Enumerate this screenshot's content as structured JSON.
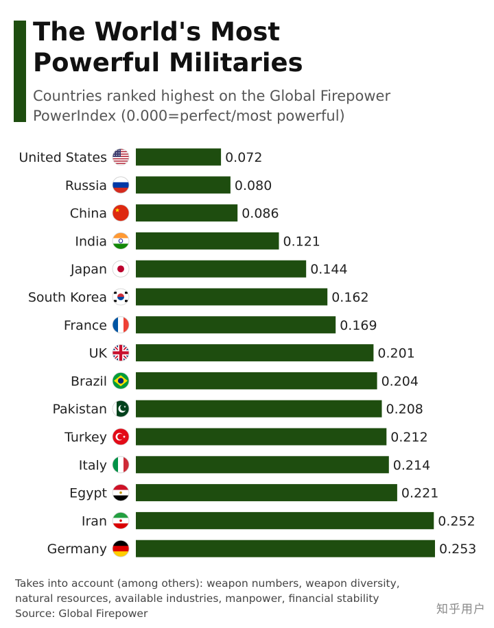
{
  "header": {
    "title": "The World's Most\nPowerful Militaries",
    "subtitle": "Countries ranked highest on the Global Firepower\nPowerIndex (0.000=perfect/most powerful)"
  },
  "footer": {
    "note": "Takes into account (among others): weapon numbers, weapon diversity,\nnatural resources, available industries, manpower, financial stability",
    "source": "Source: Global Firepower",
    "watermark": "知乎用户"
  },
  "colors": {
    "bar": "#1e4d0f",
    "accent": "#1e4d0f"
  },
  "chart_data": {
    "type": "bar",
    "orientation": "horizontal",
    "title": "The World's Most Powerful Militaries",
    "categories": [
      "United States",
      "Russia",
      "China",
      "India",
      "Japan",
      "South Korea",
      "France",
      "UK",
      "Brazil",
      "Pakistan",
      "Turkey",
      "Italy",
      "Egypt",
      "Iran",
      "Germany"
    ],
    "values": [
      0.072,
      0.08,
      0.086,
      0.121,
      0.144,
      0.162,
      0.169,
      0.201,
      0.204,
      0.208,
      0.212,
      0.214,
      0.221,
      0.252,
      0.253
    ],
    "value_labels": [
      "0.072",
      "0.080",
      "0.086",
      "0.121",
      "0.144",
      "0.162",
      "0.169",
      "0.201",
      "0.204",
      "0.208",
      "0.212",
      "0.214",
      "0.221",
      "0.252",
      "0.253"
    ],
    "flag_icons": [
      "us-flag-icon",
      "russia-flag-icon",
      "china-flag-icon",
      "india-flag-icon",
      "japan-flag-icon",
      "south-korea-flag-icon",
      "france-flag-icon",
      "uk-flag-icon",
      "brazil-flag-icon",
      "pakistan-flag-icon",
      "turkey-flag-icon",
      "italy-flag-icon",
      "egypt-flag-icon",
      "iran-flag-icon",
      "germany-flag-icon"
    ],
    "xlim": [
      0,
      0.253
    ],
    "grid": false,
    "legend": "none"
  }
}
